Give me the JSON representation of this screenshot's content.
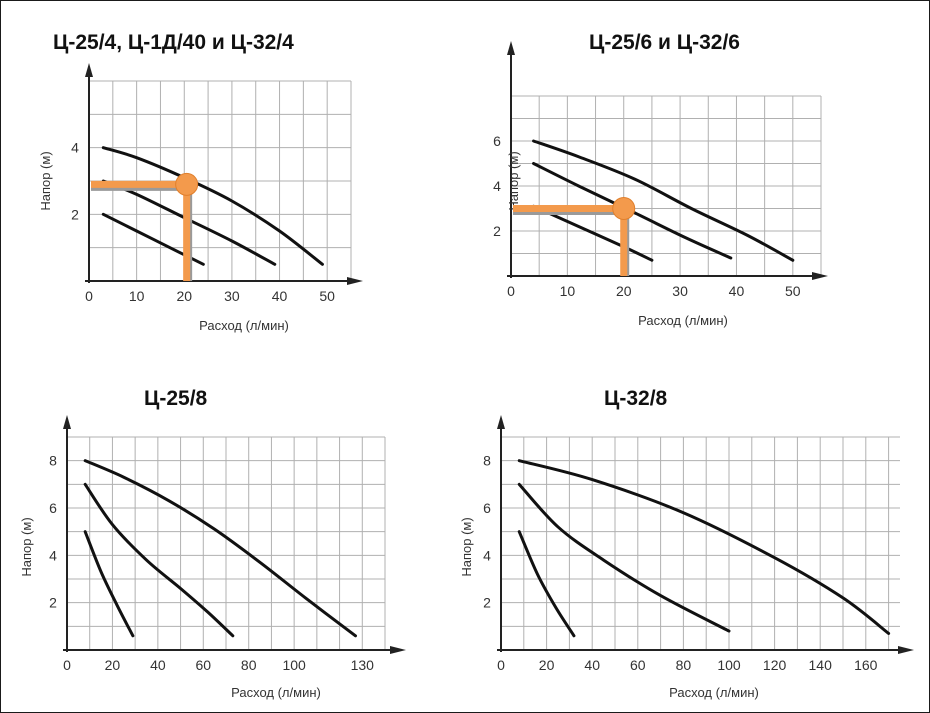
{
  "colors": {
    "curve": "#111111",
    "grid": "#b0b0b0",
    "axis": "#222222",
    "highlight": "#f39a4c",
    "highlight_shadow": "#9a9a9a"
  },
  "chart_data": [
    {
      "type": "line",
      "title": "Ц-25/4, Ц-1Д/40 и Ц-32/4",
      "xlabel": "Расход (л/мин)",
      "ylabel": "Напор (м)",
      "xlim": [
        0,
        55
      ],
      "ylim": [
        0,
        6
      ],
      "xticks": [
        0,
        10,
        20,
        30,
        40,
        50
      ],
      "xtick_labels": [
        "0",
        "10",
        "20",
        "30",
        "40",
        "50"
      ],
      "yticks": [
        2,
        4
      ],
      "ytick_labels": [
        "2",
        "4"
      ],
      "grid": true,
      "series": [
        {
          "x": [
            3,
            10,
            20,
            30,
            40,
            49
          ],
          "y": [
            4.0,
            3.7,
            3.1,
            2.4,
            1.5,
            0.5
          ]
        },
        {
          "x": [
            3,
            10,
            20,
            30,
            39
          ],
          "y": [
            3.0,
            2.6,
            1.9,
            1.2,
            0.5
          ]
        },
        {
          "x": [
            3,
            10,
            17,
            24
          ],
          "y": [
            2.0,
            1.5,
            1.0,
            0.5
          ]
        }
      ],
      "operating_point": {
        "x": 20.5,
        "y": 2.9
      }
    },
    {
      "type": "line",
      "title": "Ц-25/6 и Ц-32/6",
      "xlabel": "Расход (л/мин)",
      "ylabel": "Напор (м)",
      "xlim": [
        0,
        55
      ],
      "ylim": [
        0,
        8
      ],
      "xticks": [
        0,
        10,
        20,
        30,
        40,
        50
      ],
      "xtick_labels": [
        "0",
        "10",
        "20",
        "30",
        "40",
        "50"
      ],
      "yticks": [
        2,
        4,
        6
      ],
      "ytick_labels": [
        "2",
        "4",
        "6"
      ],
      "grid": true,
      "series": [
        {
          "x": [
            4,
            12,
            22,
            32,
            42,
            50
          ],
          "y": [
            6.0,
            5.3,
            4.3,
            3.0,
            1.8,
            0.7
          ]
        },
        {
          "x": [
            4,
            12,
            22,
            31,
            39
          ],
          "y": [
            5.0,
            4.0,
            2.8,
            1.7,
            0.8
          ]
        },
        {
          "x": [
            4,
            12,
            20,
            25
          ],
          "y": [
            3.1,
            2.2,
            1.3,
            0.7
          ]
        }
      ],
      "operating_point": {
        "x": 20,
        "y": 3.0
      }
    },
    {
      "type": "line",
      "title": "Ц-25/8",
      "xlabel": "Расход (л/мин)",
      "ylabel": "Напор (м)",
      "xlim": [
        0,
        140
      ],
      "ylim": [
        0,
        9
      ],
      "xticks": [
        0,
        20,
        40,
        60,
        80,
        100,
        130
      ],
      "xtick_labels": [
        "0",
        "20",
        "40",
        "60",
        "80",
        "100",
        "130"
      ],
      "yticks": [
        2,
        4,
        6,
        8
      ],
      "ytick_labels": [
        "2",
        "4",
        "6",
        "8"
      ],
      "grid": true,
      "series": [
        {
          "x": [
            8,
            25,
            45,
            65,
            85,
            105,
            127
          ],
          "y": [
            8.0,
            7.3,
            6.3,
            5.1,
            3.7,
            2.2,
            0.6
          ]
        },
        {
          "x": [
            8,
            20,
            35,
            50,
            62,
            73
          ],
          "y": [
            7.0,
            5.3,
            3.8,
            2.6,
            1.6,
            0.6
          ]
        },
        {
          "x": [
            8,
            15,
            22,
            29
          ],
          "y": [
            5.0,
            3.3,
            1.9,
            0.6
          ]
        }
      ]
    },
    {
      "type": "line",
      "title": "Ц-32/8",
      "xlabel": "Расход (л/мин)",
      "ylabel": "Напор (м)",
      "xlim": [
        0,
        175
      ],
      "ylim": [
        0,
        9
      ],
      "xticks": [
        0,
        20,
        40,
        60,
        80,
        100,
        120,
        140,
        160
      ],
      "xtick_labels": [
        "0",
        "20",
        "40",
        "60",
        "80",
        "100",
        "120",
        "140",
        "160"
      ],
      "yticks": [
        2,
        4,
        6,
        8
      ],
      "ytick_labels": [
        "2",
        "4",
        "6",
        "8"
      ],
      "grid": true,
      "series": [
        {
          "x": [
            8,
            40,
            80,
            120,
            150,
            170
          ],
          "y": [
            8.0,
            7.2,
            5.8,
            3.9,
            2.2,
            0.7
          ]
        },
        {
          "x": [
            8,
            25,
            45,
            70,
            100
          ],
          "y": [
            7.0,
            5.2,
            3.8,
            2.3,
            0.8
          ]
        },
        {
          "x": [
            8,
            16,
            24,
            32
          ],
          "y": [
            5.0,
            3.2,
            1.8,
            0.6
          ]
        }
      ]
    }
  ]
}
